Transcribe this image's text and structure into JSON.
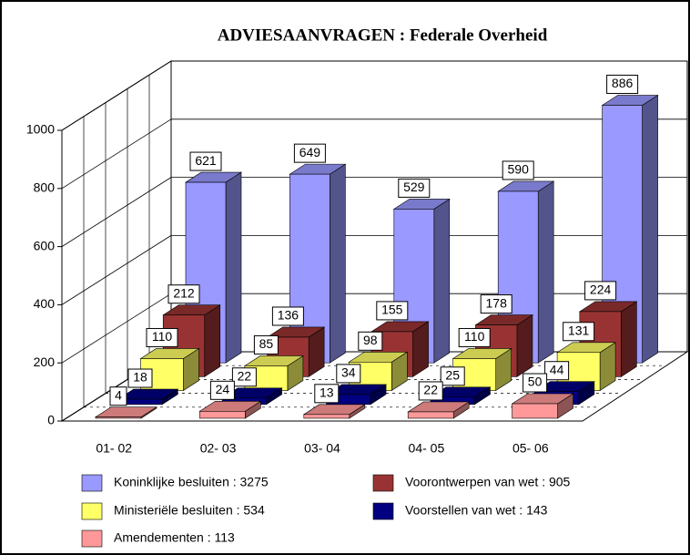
{
  "chart_data": {
    "type": "bar3d",
    "title": "ADVIESAANVRAGEN : Federale Overheid",
    "categories": [
      "01- 02",
      "02- 03",
      "03- 04",
      "04- 05",
      "05- 06"
    ],
    "series": [
      {
        "name": "Koninklijke besluiten : 3275",
        "color": "#9999ff",
        "values": [
          621,
          649,
          529,
          590,
          886
        ]
      },
      {
        "name": "Voorontwerpen van wet : 905",
        "color": "#993333",
        "values": [
          212,
          136,
          155,
          178,
          224
        ]
      },
      {
        "name": "Ministeriële besluiten : 534",
        "color": "#ffff66",
        "values": [
          110,
          85,
          98,
          110,
          131
        ]
      },
      {
        "name": "Voorstellen van wet : 143",
        "color": "#000080",
        "values": [
          18,
          22,
          34,
          25,
          44
        ]
      },
      {
        "name": "Amendementen : 113",
        "color": "#ff9999",
        "values": [
          4,
          24,
          13,
          22,
          50
        ]
      }
    ],
    "ylim": [
      0,
      1000
    ],
    "yticks": [
      0,
      200,
      400,
      600,
      800,
      1000
    ],
    "grid": true
  }
}
